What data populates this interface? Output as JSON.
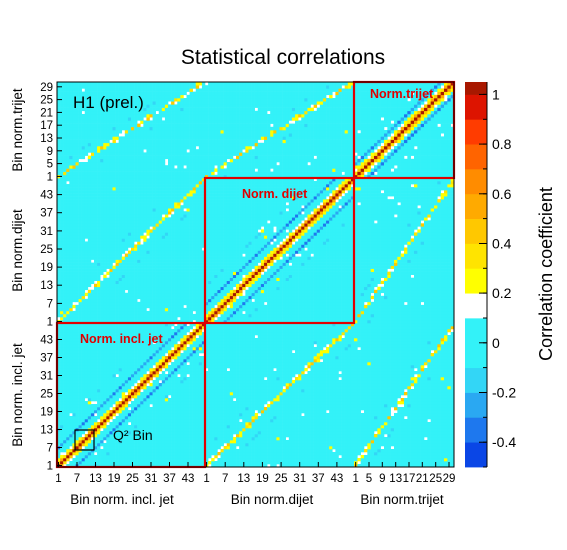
{
  "chart_data": {
    "type": "heatmap",
    "title": "Statistical correlations",
    "experiment_label": "H1 (prel.)",
    "colorbar_label": "Correlation coefficient",
    "q2_label": "Q² Bin",
    "blocks": [
      {
        "name": "Bin norm. incl. jet",
        "ylabel": "Bin norm. incl. jet",
        "box_label": "Norm. incl. jet",
        "n_bins": 48,
        "ticks": [
          "1",
          "7",
          "13",
          "19",
          "25",
          "31",
          "37",
          "43"
        ],
        "y_ticks": [
          "1",
          "7",
          "13",
          "19",
          "25",
          "31",
          "37",
          "43"
        ]
      },
      {
        "name": "Bin norm.dijet",
        "ylabel": "Bin norm.dijet",
        "box_label": "Norm. dijet",
        "n_bins": 48,
        "ticks": [
          "1",
          "7",
          "13",
          "19",
          "25",
          "31",
          "37",
          "43"
        ],
        "y_ticks": [
          "1",
          "7",
          "13",
          "19",
          "25",
          "31",
          "37",
          "43"
        ]
      },
      {
        "name": "Bin norm.trijet",
        "ylabel": "Bin norm.trijet",
        "box_label": "Norm.trijet",
        "n_bins": 30,
        "ticks": [
          "1",
          "5",
          "9",
          "13",
          "17",
          "21",
          "25",
          "29"
        ],
        "y_ticks": [
          "1",
          "5",
          "9",
          "13",
          "17",
          "21",
          "25",
          "29"
        ]
      }
    ],
    "colorbar": {
      "ticks": [
        "1",
        "0.8",
        "0.6",
        "0.4",
        "0.2",
        "0",
        "-0.2",
        "-0.4"
      ],
      "zlim": [
        -0.5,
        1.05
      ],
      "levels": [
        -0.5,
        -0.4,
        -0.3,
        -0.2,
        -0.1,
        0.1,
        0.2,
        0.3,
        0.4,
        0.5,
        0.6,
        0.7,
        0.8,
        0.9,
        1.0,
        1.05
      ],
      "colors": [
        "#0a46e6",
        "#1e78ee",
        "#2aa8f2",
        "#33d6f6",
        "#33f2f8",
        "#ffffff",
        "#ffff00",
        "#ffe400",
        "#ffc800",
        "#ffaa00",
        "#ff8c00",
        "#ff6400",
        "#ff3c00",
        "#dd1400",
        "#a81800"
      ]
    },
    "frame_color": "#e00000"
  }
}
